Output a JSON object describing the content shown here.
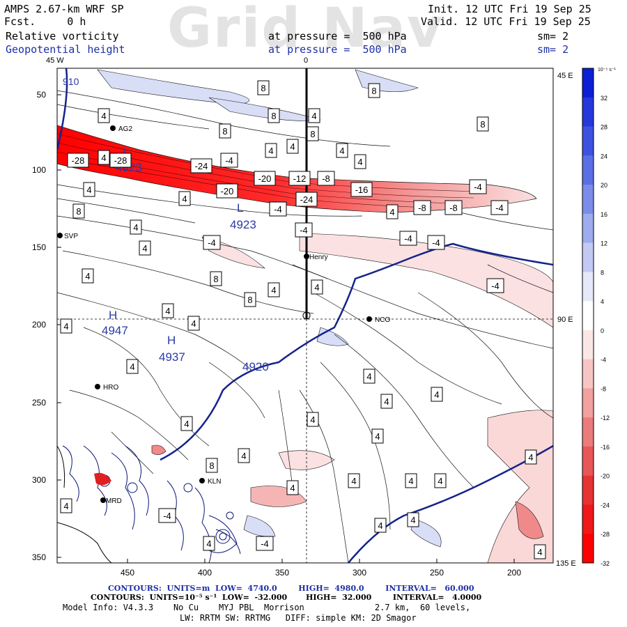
{
  "header": {
    "title_left": "AMPS 2.67-km WRF SP",
    "fcst": "Fcst.     0 h",
    "field1": "Relative vorticity",
    "field2": "Geopotential height",
    "pressure1": "at pressure =  500 hPa",
    "pressure2": "at pressure =  500 hPa",
    "sm1": "sm= 2",
    "sm2": "sm= 2",
    "init": "Init. 12 UTC Fri 19 Sep 25",
    "valid": "Valid. 12 UTC Fri 19 Sep 25",
    "watermark": "Grid Nav"
  },
  "map": {
    "top_lon_left": "45 W",
    "top_lon_center": "0",
    "right_lon_top": "45 E",
    "right_lon_mid": "90 E",
    "right_lon_bottom": "135 E",
    "y_ticks": [
      "50",
      "100",
      "150",
      "200",
      "250",
      "300",
      "350"
    ],
    "x_ticks": [
      "450",
      "400",
      "350",
      "300",
      "250",
      "200"
    ],
    "stations": [
      "AG2",
      "SVP",
      "Henry",
      "NCO",
      "HRO",
      "KLN",
      "MRD"
    ],
    "height_labels": [
      {
        "kind": "L",
        "value": "4923"
      },
      {
        "kind": "L",
        "value": "4923"
      },
      {
        "kind": "H",
        "value": "4947"
      },
      {
        "kind": "H",
        "value": "4937"
      }
    ],
    "contour_line_label": "4920",
    "corner_label": "910",
    "vorticity_boxes": [
      "8",
      "8",
      "8",
      "8",
      "4",
      "8",
      "4",
      "8",
      "4",
      "4",
      "4",
      "4",
      "4",
      "-28",
      "-28",
      "-24",
      "-4",
      "-20",
      "-12",
      "-8",
      "-16",
      "-4",
      "-20",
      "-24",
      "-4",
      "-8",
      "-8",
      "-4",
      "4",
      "4",
      "4",
      "8",
      "4",
      "-4",
      "-4",
      "-4",
      "-4",
      "4",
      "4",
      "8",
      "4",
      "4",
      "8",
      "-4",
      "4",
      "4",
      "4",
      "4",
      "4",
      "4",
      "4",
      "4",
      "4",
      "4",
      "4",
      "8",
      "4",
      "4",
      "4",
      "4",
      "4",
      "4",
      "4",
      "4",
      "4",
      "-4",
      "4",
      "-4"
    ]
  },
  "colorbar": {
    "unit": "10⁻⁵ s⁻¹",
    "labels": [
      "32",
      "28",
      "24",
      "20",
      "16",
      "12",
      "8",
      "4",
      "0",
      "-4",
      "-8",
      "-12",
      "-16",
      "-20",
      "-24",
      "-28",
      "-32"
    ],
    "colors": [
      "#0a1fd6",
      "#2438db",
      "#3d52e0",
      "#5a6ee5",
      "#7b8de9",
      "#9eacee",
      "#c2caf3",
      "#e4e8f9",
      "#ffffff",
      "#fbe6e6",
      "#f7c4c4",
      "#f2a0a0",
      "#ec7b7b",
      "#e85656",
      "#e63333",
      "#f01818",
      "#ff0000"
    ]
  },
  "footer": {
    "line1": "CONTOURS:  UNITS=m  LOW=  4740.0        HIGH=  4980.0        INTERVAL=   60.000",
    "line2": "CONTOURS:  UNITS=10⁻⁵ s⁻¹  LOW=  -32.000       HIGH=  32.000        INTERVAL=   4.0000",
    "line3": "Model Info: V4.3.3    No Cu    MYJ PBL  Morrison              2.7 km,  60 levels,",
    "line4": "LW: RRTM SW: RRTMG   DIFF: simple KM: 2D Smagor"
  }
}
